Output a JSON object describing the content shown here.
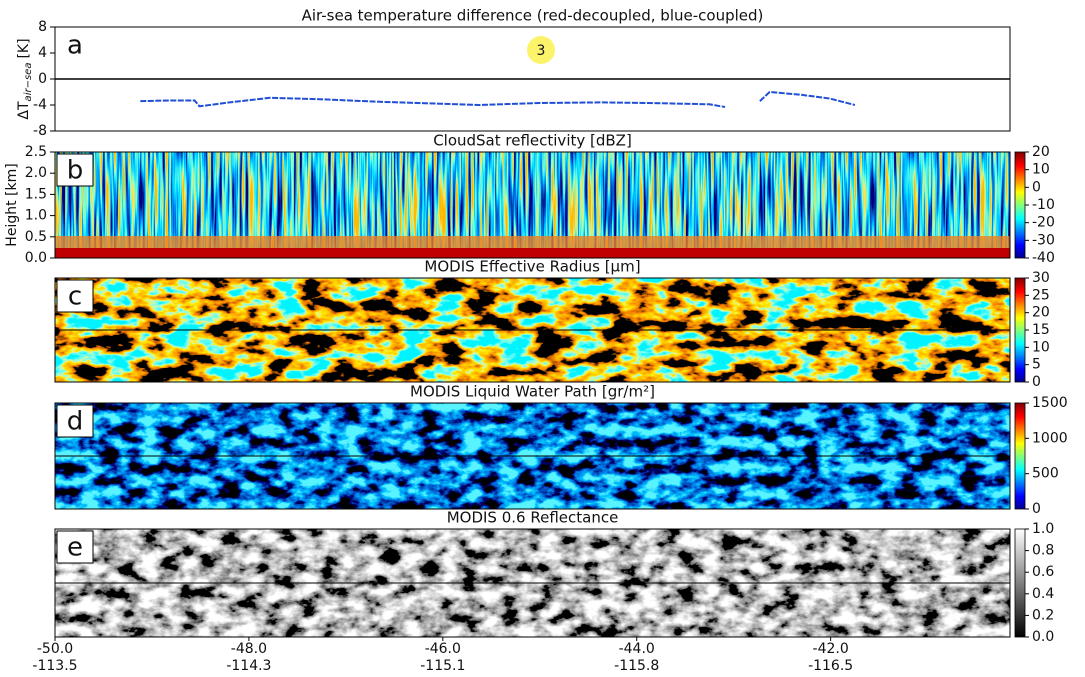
{
  "chart_data": [
    {
      "type": "line",
      "title": "Air-sea temperature difference (red-decoupled, blue-coupled)",
      "panel_label": "a",
      "ylabel_main": "ΔT",
      "ylabel_sub": "air−sea",
      "ylabel_unit": "[K]",
      "ylim": [
        -8,
        8
      ],
      "yticks": [
        -8,
        -4,
        0,
        4,
        8
      ],
      "hline": 0,
      "annotation": "3",
      "xlim": [
        -50,
        -40.15
      ],
      "series": [
        {
          "color": "#1f4fd6",
          "x": [
            -49.12,
            -48.81,
            -48.56,
            -48.51,
            -48.2,
            -47.78,
            -47.27,
            -46.65,
            -46.03,
            -45.62,
            -45.0,
            -44.38,
            -43.87,
            -43.25,
            -43.09,
            -42.94,
            -42.73,
            -42.63,
            -42.32,
            -42.01,
            -41.75
          ],
          "values": [
            -3.4,
            -3.3,
            -3.3,
            -4.2,
            -3.6,
            -2.9,
            -3.1,
            -3.5,
            -3.8,
            -4.0,
            -3.7,
            -3.6,
            -3.7,
            -3.9,
            -4.3,
            null,
            -3.4,
            -2.0,
            -2.4,
            -3.0,
            -4.0
          ]
        }
      ]
    },
    {
      "type": "heatmap",
      "title": "CloudSat reflectivity [dBZ]",
      "panel_label": "b",
      "ylabel": "Height [km]",
      "ylim": [
        0,
        2.5
      ],
      "yticks": [
        {
          "value": 0,
          "label": "0.0"
        },
        {
          "value": 0.5,
          "label": "0.5"
        },
        {
          "value": 1,
          "label": "1.0"
        },
        {
          "value": 1.5,
          "label": "1.5"
        },
        {
          "value": 2,
          "label": "2.0"
        },
        {
          "value": 2.5,
          "label": "2.5"
        }
      ],
      "colormap": "jet",
      "clim": [
        -40,
        20
      ],
      "cticks": [
        -40,
        -30,
        -20,
        -10,
        0,
        10,
        20
      ]
    },
    {
      "type": "heatmap",
      "title": "MODIS Effective Radius [μm]",
      "panel_label": "c",
      "colormap": "jet",
      "clim": [
        0,
        30
      ],
      "cticks": [
        0,
        5,
        10,
        15,
        20,
        25,
        30
      ]
    },
    {
      "type": "heatmap",
      "title": "MODIS Liquid Water Path [gr/m²]",
      "panel_label": "d",
      "colormap": "jet",
      "clim": [
        0,
        1500
      ],
      "cticks": [
        0,
        500,
        1000,
        1500
      ]
    },
    {
      "type": "heatmap",
      "title": "MODIS 0.6 Reflectance",
      "panel_label": "e",
      "colormap": "gray",
      "clim": [
        0,
        1
      ],
      "cticks": [
        {
          "value": 0,
          "label": "0.0"
        },
        {
          "value": 0.2,
          "label": "0.2"
        },
        {
          "value": 0.4,
          "label": "0.4"
        },
        {
          "value": 0.6,
          "label": "0.6"
        },
        {
          "value": 0.8,
          "label": "0.8"
        },
        {
          "value": 1,
          "label": "1.0"
        }
      ],
      "xlim": [
        -50,
        -40.15
      ],
      "xticks": [
        {
          "value": -50,
          "label": "-50.0"
        },
        {
          "value": -48,
          "label": "-48.0"
        },
        {
          "value": -46,
          "label": "-46.0"
        },
        {
          "value": -44,
          "label": "-44.0"
        },
        {
          "value": -42,
          "label": "-42.0"
        }
      ],
      "xticks2": [
        -113.5,
        -114.3,
        -115.1,
        -115.8,
        -116.5
      ]
    }
  ]
}
